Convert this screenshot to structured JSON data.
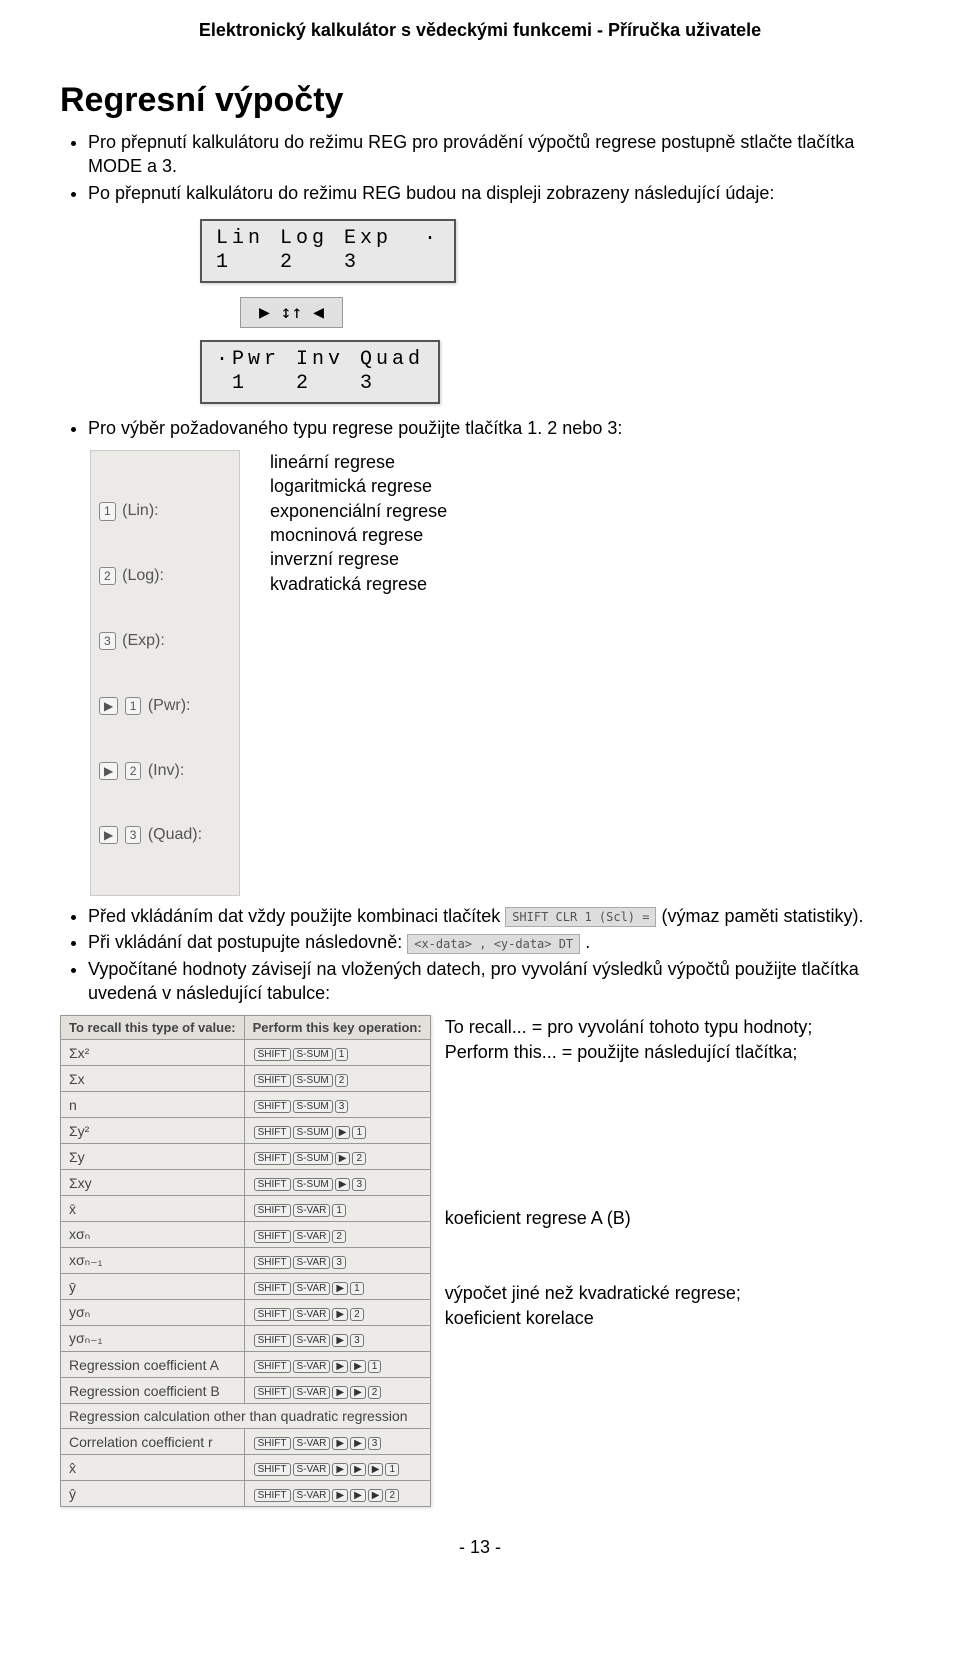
{
  "header": {
    "title": "Elektronický kalkulátor s vědeckými funkcemi - Příručka uživatele"
  },
  "heading": "Regresní výpočty",
  "intro_bullets": {
    "b1": "Pro přepnutí kalkulátoru do režimu REG pro provádění výpočtů regrese postupně stlačte tlačítka MODE a 3.",
    "b2": "Po přepnutí kalkulátoru do režimu REG budou na displeji zobrazeny následující údaje:"
  },
  "lcd1": {
    "row1": "Lin Log Exp  ·",
    "row2": "1   2   3"
  },
  "arrows": "▶  ↕↑  ◀",
  "lcd2": {
    "row1": "·Pwr Inv Quad",
    "row2": " 1   2   3"
  },
  "after_lcd_bullet": "Pro výběr požadovaného typu regrese použijte tlačítka 1. 2 nebo 3:",
  "defkeys": {
    "r1a": "1",
    "r1b": "(Lin):",
    "r2a": "2",
    "r2b": "(Log):",
    "r3a": "3",
    "r3b": "(Exp):",
    "r4a": "▶",
    "r4b": "1",
    "r4c": "(Pwr):",
    "r5a": "▶",
    "r5b": "2",
    "r5c": "(Inv):",
    "r6a": "▶",
    "r6b": "3",
    "r6c": "(Quad):"
  },
  "deflabels": {
    "l1": "lineární regrese",
    "l2": "logaritmická regrese",
    "l3": "exponenciální regrese",
    "l4": "mocninová regrese",
    "l5": "inverzní regrese",
    "l6": "kvadratická regrese"
  },
  "more_bullets": {
    "b1a": "Před vkládáním dat vždy použijte kombinaci tlačítek ",
    "b1_key": "SHIFT CLR 1 (Scl) =",
    "b1b": " (výmaz paměti statistiky).",
    "b2a": "Při vkládání dat postupujte následovně: ",
    "b2_key": "<x-data> , <y-data> DT",
    "b2b": ".",
    "b3": "Vypočítané hodnoty závisejí na vložených datech, pro vyvolání výsledků výpočtů použijte tlačítka uvedená v následující tabulce:"
  },
  "table": {
    "h1": "To recall this type of value:",
    "h2": "Perform this key operation:",
    "rows": [
      {
        "v": "Σx²",
        "keys": [
          "SHIFT",
          "S-SUM",
          "1"
        ]
      },
      {
        "v": "Σx",
        "keys": [
          "SHIFT",
          "S-SUM",
          "2"
        ]
      },
      {
        "v": "n",
        "keys": [
          "SHIFT",
          "S-SUM",
          "3"
        ]
      },
      {
        "v": "Σy²",
        "keys": [
          "SHIFT",
          "S-SUM",
          "▶",
          "1"
        ]
      },
      {
        "v": "Σy",
        "keys": [
          "SHIFT",
          "S-SUM",
          "▶",
          "2"
        ]
      },
      {
        "v": "Σxy",
        "keys": [
          "SHIFT",
          "S-SUM",
          "▶",
          "3"
        ]
      },
      {
        "v": "x̄",
        "keys": [
          "SHIFT",
          "S-VAR",
          "1"
        ]
      },
      {
        "v": "xσₙ",
        "keys": [
          "SHIFT",
          "S-VAR",
          "2"
        ]
      },
      {
        "v": "xσₙ₋₁",
        "keys": [
          "SHIFT",
          "S-VAR",
          "3"
        ]
      },
      {
        "v": "ȳ",
        "keys": [
          "SHIFT",
          "S-VAR",
          "▶",
          "1"
        ]
      },
      {
        "v": "yσₙ",
        "keys": [
          "SHIFT",
          "S-VAR",
          "▶",
          "2"
        ]
      },
      {
        "v": "yσₙ₋₁",
        "keys": [
          "SHIFT",
          "S-VAR",
          "▶",
          "3"
        ]
      },
      {
        "v": "Regression coefficient A",
        "keys": [
          "SHIFT",
          "S-VAR",
          "▶",
          "▶",
          "1"
        ]
      },
      {
        "v": "Regression coefficient B",
        "keys": [
          "SHIFT",
          "S-VAR",
          "▶",
          "▶",
          "2"
        ]
      },
      {
        "v": "Regression calculation other than quadratic regression",
        "span": true
      },
      {
        "v": "Correlation coefficient r",
        "keys": [
          "SHIFT",
          "S-VAR",
          "▶",
          "▶",
          "3"
        ]
      },
      {
        "v": "x̂",
        "keys": [
          "SHIFT",
          "S-VAR",
          "▶",
          "▶",
          "▶",
          "1"
        ]
      },
      {
        "v": "ŷ",
        "keys": [
          "SHIFT",
          "S-VAR",
          "▶",
          "▶",
          "▶",
          "2"
        ]
      }
    ]
  },
  "sidenotes": {
    "n1": "To recall... = pro vyvolání tohoto typu hodnoty;\nPerform this... = použijte následující tlačítka;",
    "n2": "koeficient regrese A (B)",
    "n3": "výpočet jiné než kvadratické regrese;\nkoeficient korelace"
  },
  "footer": "- 13 -"
}
